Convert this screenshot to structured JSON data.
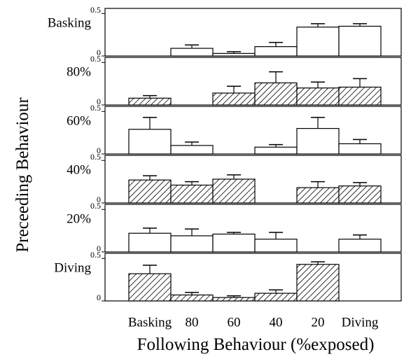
{
  "chart_data": {
    "type": "bar",
    "xlabel": "Following Behaviour (%exposed)",
    "ylabel": "Preceeding Behaviour",
    "categories": [
      "Basking",
      "80",
      "60",
      "40",
      "20",
      "Diving"
    ],
    "ylim": [
      0,
      0.56
    ],
    "yticks": [
      0,
      0.5
    ],
    "panels": [
      {
        "name": "Basking",
        "hatched": false,
        "values": [
          null,
          0.09,
          0.03,
          0.11,
          0.34,
          0.35
        ],
        "errors": [
          null,
          0.04,
          0.02,
          0.05,
          0.04,
          0.03
        ]
      },
      {
        "name": "80%",
        "hatched": true,
        "values": [
          0.08,
          null,
          0.14,
          0.26,
          0.2,
          0.21
        ],
        "errors": [
          0.03,
          null,
          0.08,
          0.13,
          0.07,
          0.1
        ]
      },
      {
        "name": "60%",
        "hatched": false,
        "values": [
          0.29,
          0.1,
          null,
          0.08,
          0.3,
          0.12
        ],
        "errors": [
          0.14,
          0.04,
          null,
          0.03,
          0.13,
          0.05
        ]
      },
      {
        "name": "40%",
        "hatched": true,
        "values": [
          0.27,
          0.21,
          0.28,
          null,
          0.18,
          0.2
        ],
        "errors": [
          0.05,
          0.04,
          0.05,
          null,
          0.07,
          0.04
        ]
      },
      {
        "name": "20%",
        "hatched": false,
        "values": [
          0.22,
          0.19,
          0.21,
          0.15,
          null,
          0.15
        ],
        "errors": [
          0.06,
          0.08,
          0.02,
          0.08,
          null,
          0.05
        ]
      },
      {
        "name": "Diving",
        "hatched": true,
        "values": [
          0.32,
          0.07,
          0.04,
          0.09,
          0.43,
          null
        ],
        "errors": [
          0.1,
          0.03,
          0.02,
          0.04,
          0.03,
          null
        ]
      }
    ]
  }
}
